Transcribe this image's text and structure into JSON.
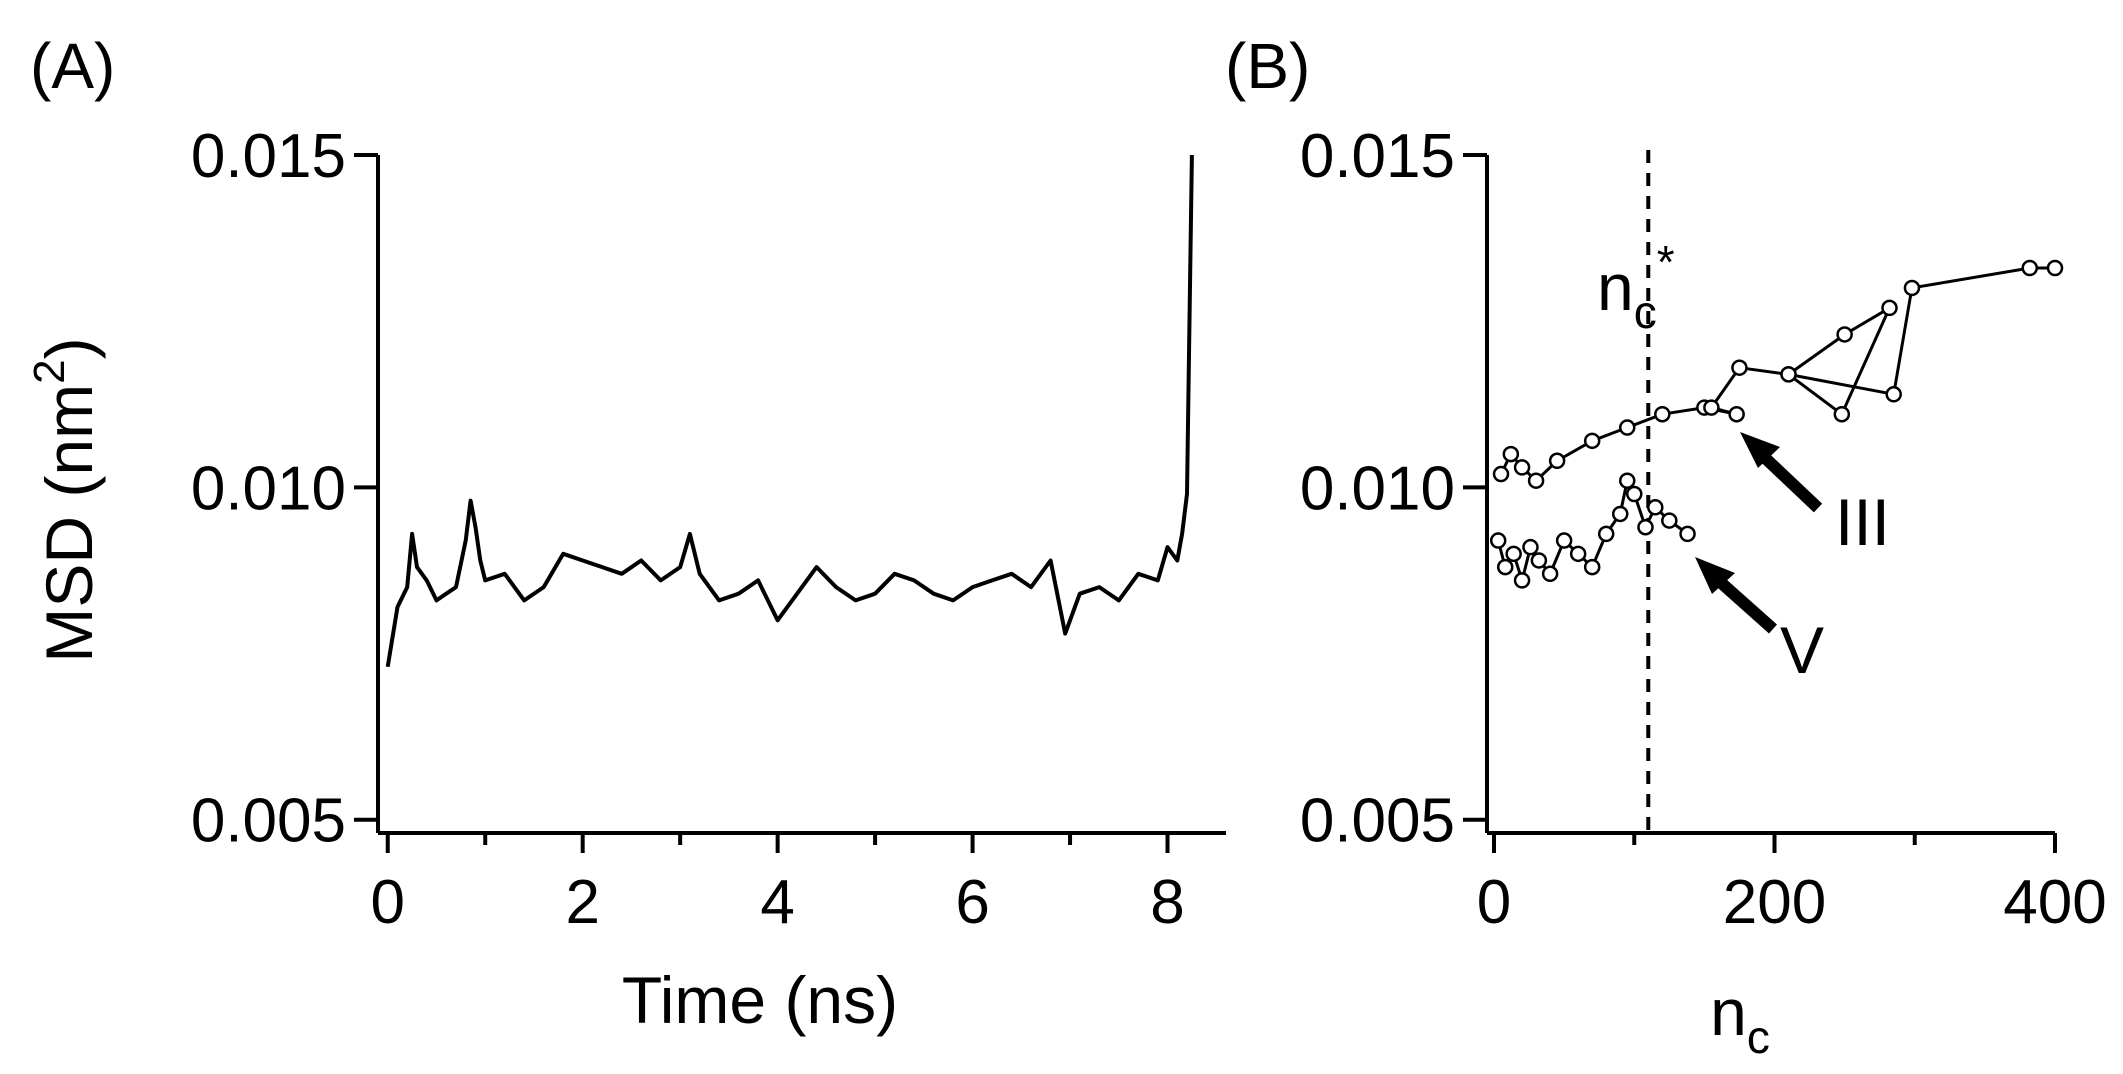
{
  "panels": {
    "a": {
      "label": "(A)"
    },
    "b": {
      "label": "(B)"
    }
  },
  "annotations": {
    "threshold_base": "n",
    "threshold_sub": "c",
    "threshold_sup": "*",
    "arrow_iii": "III",
    "arrow_v": "V"
  },
  "colors": {
    "line": "#000000",
    "marker_fill": "#ffffff",
    "marker_stroke": "#000000"
  },
  "chart_data": [
    {
      "type": "line",
      "panel": "(A)",
      "xlabel": "Time (ns)",
      "ylabel": "MSD (nm",
      "ylabel_sup": "2",
      "ylabel_close": ")",
      "xlim": [
        -0.1,
        8.6
      ],
      "ylim": [
        0.0048,
        0.015
      ],
      "xticks": [
        0,
        2,
        4,
        6,
        8
      ],
      "xtick_labels": [
        "0",
        "2",
        "4",
        "6",
        "8"
      ],
      "xminor_ticks": [
        1,
        3,
        5,
        7
      ],
      "yticks": [
        0.005,
        0.01,
        0.015
      ],
      "ytick_labels": [
        "0.005",
        "0.010",
        "0.015"
      ],
      "grid": false,
      "series": [
        {
          "x": [
            0,
            0.1,
            0.2,
            0.25,
            0.3,
            0.4,
            0.5,
            0.6,
            0.7,
            0.8,
            0.85,
            0.9,
            0.95,
            1.0,
            1.2,
            1.4,
            1.6,
            1.8,
            2.0,
            2.2,
            2.4,
            2.6,
            2.8,
            3.0,
            3.1,
            3.2,
            3.4,
            3.6,
            3.8,
            4.0,
            4.2,
            4.4,
            4.6,
            4.8,
            5.0,
            5.2,
            5.4,
            5.6,
            5.8,
            6.0,
            6.2,
            6.4,
            6.6,
            6.8,
            6.95,
            7.1,
            7.3,
            7.5,
            7.7,
            7.9,
            8.0,
            8.1,
            8.15,
            8.2,
            8.22,
            8.25
          ],
          "y": [
            0.0073,
            0.0082,
            0.0085,
            0.0093,
            0.0088,
            0.0086,
            0.0083,
            0.0084,
            0.0085,
            0.0092,
            0.0098,
            0.0094,
            0.0089,
            0.0086,
            0.0087,
            0.0083,
            0.0085,
            0.009,
            0.0089,
            0.0088,
            0.0087,
            0.0089,
            0.0086,
            0.0088,
            0.0093,
            0.0087,
            0.0083,
            0.0084,
            0.0086,
            0.008,
            0.0084,
            0.0088,
            0.0085,
            0.0083,
            0.0084,
            0.0087,
            0.0086,
            0.0084,
            0.0083,
            0.0085,
            0.0086,
            0.0087,
            0.0085,
            0.0089,
            0.0078,
            0.0084,
            0.0085,
            0.0083,
            0.0087,
            0.0086,
            0.0091,
            0.0089,
            0.0093,
            0.0099,
            0.012,
            0.015
          ]
        }
      ]
    },
    {
      "type": "scatter",
      "panel": "(B)",
      "xlabel": "n",
      "xlabel_sub": "c",
      "xlim": [
        -5,
        400
      ],
      "ylim": [
        0.0048,
        0.015
      ],
      "xticks": [
        0,
        200,
        400
      ],
      "xtick_labels": [
        "0",
        "200",
        "400"
      ],
      "xminor_ticks": [
        100,
        300
      ],
      "yticks": [
        0.005,
        0.01,
        0.015
      ],
      "ytick_labels": [
        "0.005",
        "0.010",
        "0.015"
      ],
      "threshold_x": 110,
      "grid": false,
      "series": [
        {
          "x": [
            3,
            8,
            14,
            20,
            26,
            32,
            40,
            50,
            60,
            70,
            80,
            90,
            95,
            100,
            108,
            115,
            125,
            138
          ],
          "y": [
            0.0092,
            0.0088,
            0.009,
            0.0086,
            0.0091,
            0.0089,
            0.0087,
            0.0092,
            0.009,
            0.0088,
            0.0093,
            0.0096,
            0.0101,
            0.0099,
            0.0094,
            0.0097,
            0.0095,
            0.0093
          ]
        },
        {
          "x": [
            5,
            12,
            20,
            30,
            45,
            70,
            95,
            120,
            150,
            173,
            155,
            175,
            210,
            250,
            282,
            248,
            210,
            285,
            298,
            382,
            400
          ],
          "y": [
            0.0102,
            0.0105,
            0.0103,
            0.0101,
            0.0104,
            0.0107,
            0.0109,
            0.0111,
            0.0112,
            0.0111,
            0.0112,
            0.0118,
            0.0117,
            0.0123,
            0.0127,
            0.0111,
            0.0117,
            0.0114,
            0.013,
            0.0133,
            0.0133
          ]
        }
      ]
    }
  ]
}
